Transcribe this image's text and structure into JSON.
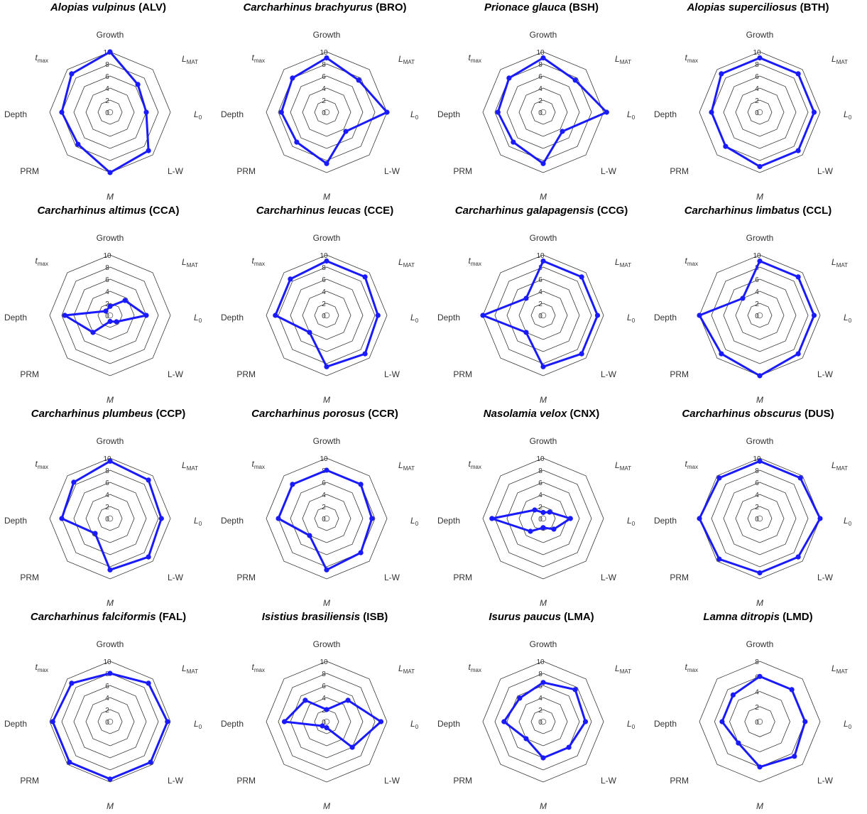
{
  "chart_data": {
    "type": "radar",
    "axes": [
      {
        "key": "Growth",
        "label": "Growth"
      },
      {
        "key": "L_MAT",
        "label": "L",
        "sub": "MAT",
        "italic": true
      },
      {
        "key": "L_0",
        "label": "L",
        "sub": "0",
        "italic": true
      },
      {
        "key": "L-W",
        "label": "L-W"
      },
      {
        "key": "M",
        "label": "M",
        "italic": true
      },
      {
        "key": "PRM",
        "label": "PRM"
      },
      {
        "key": "Depth",
        "label": "Depth"
      },
      {
        "key": "t_max",
        "label": "t",
        "sub": "max",
        "italic": true
      }
    ],
    "series_color": "#1a1aff",
    "grid_color": "#333333",
    "panels": [
      {
        "species": "Alopias vulpinus",
        "code": "(ALV)",
        "rmax": 10,
        "ticks": [
          0,
          2,
          4,
          6,
          8,
          10
        ],
        "values": [
          10,
          6.5,
          6,
          9,
          10,
          7.5,
          8,
          9
        ]
      },
      {
        "species": "Carcharhinus brachyurus",
        "code": "(BRO)",
        "rmax": 10,
        "ticks": [
          0,
          2,
          4,
          6,
          8,
          10
        ],
        "values": [
          9,
          7.5,
          10,
          4.5,
          8.5,
          7,
          7.5,
          8
        ]
      },
      {
        "species": "Prionace glauca",
        "code": "(BSH)",
        "rmax": 10,
        "ticks": [
          0,
          2,
          4,
          6,
          8,
          10
        ],
        "values": [
          9,
          7.5,
          10.5,
          4.5,
          8.5,
          7,
          7.5,
          8
        ]
      },
      {
        "species": "Alopias superciliosus",
        "code": "(BTH)",
        "rmax": 10,
        "ticks": [
          0,
          2,
          4,
          6,
          8,
          10
        ],
        "values": [
          9,
          9,
          9,
          9,
          9,
          8,
          8,
          9
        ]
      },
      {
        "species": "Carcharhinus altimus",
        "code": "(CCA)",
        "rmax": 10,
        "ticks": [
          0,
          2,
          4,
          6,
          8,
          10
        ],
        "values": [
          1.5,
          3.5,
          6,
          1.5,
          1,
          4,
          7.5,
          1
        ]
      },
      {
        "species": "Carcharhinus leucas",
        "code": "(CCE)",
        "rmax": 10,
        "ticks": [
          0,
          2,
          4,
          6,
          8,
          10
        ],
        "values": [
          9,
          9,
          8.5,
          9,
          8.5,
          4,
          8.5,
          8.5
        ]
      },
      {
        "species": "Carcharhinus galapagensis",
        "code": "(CCG)",
        "rmax": 10,
        "ticks": [
          0,
          2,
          4,
          6,
          8,
          10
        ],
        "values": [
          9,
          9,
          9,
          9,
          8.5,
          4,
          10,
          4
        ]
      },
      {
        "species": "Carcharhinus limbatus",
        "code": "(CCL)",
        "rmax": 10,
        "ticks": [
          0,
          2,
          4,
          6,
          8,
          10
        ],
        "values": [
          9,
          9,
          9,
          9,
          10,
          9,
          10,
          4
        ]
      },
      {
        "species": "Carcharhinus plumbeus",
        "code": "(CCP)",
        "rmax": 10,
        "ticks": [
          0,
          2,
          4,
          6,
          8,
          10
        ],
        "values": [
          9.5,
          9,
          8.5,
          9,
          8.5,
          3.5,
          8,
          8.5
        ]
      },
      {
        "species": "Carcharhinus porosus",
        "code": "(CCR)",
        "rmax": 10,
        "ticks": [
          0,
          2,
          4,
          6,
          8,
          10
        ],
        "values": [
          8,
          8,
          7.5,
          8,
          8.5,
          4,
          8,
          8
        ]
      },
      {
        "species": "Nasolamia velox",
        "code": "(CNX)",
        "rmax": 10,
        "ticks": [
          0,
          2,
          4,
          6,
          8,
          10
        ],
        "values": [
          1,
          1.5,
          4.5,
          2.5,
          1.5,
          3,
          8.5,
          2
        ]
      },
      {
        "species": "Carcharhinus obscurus",
        "code": "(DUS)",
        "rmax": 10,
        "ticks": [
          0,
          2,
          4,
          6,
          8,
          10
        ],
        "values": [
          9.5,
          9.5,
          10,
          9,
          9,
          9.5,
          10,
          9.5
        ]
      },
      {
        "species": "Carcharhinus falciformis",
        "code": "(FAL)",
        "rmax": 10,
        "ticks": [
          0,
          2,
          4,
          6,
          8,
          10
        ],
        "values": [
          8,
          9,
          9.5,
          9.5,
          9.5,
          9.5,
          9.5,
          9
        ]
      },
      {
        "species": "Isistius brasiliensis",
        "code": "(ISB)",
        "rmax": 10,
        "ticks": [
          0,
          2,
          4,
          6,
          8,
          10
        ],
        "values": [
          2,
          5,
          9,
          6,
          1,
          1,
          7,
          5
        ]
      },
      {
        "species": "Isurus paucus",
        "code": "(LMA)",
        "rmax": 10,
        "ticks": [
          0,
          2,
          4,
          6,
          8,
          10
        ],
        "values": [
          6.5,
          7.5,
          7,
          6,
          6,
          4,
          6.5,
          5.5
        ]
      },
      {
        "species": "Lamna ditropis",
        "code": "(LMD)",
        "rmax": 8,
        "ticks": [
          0,
          2,
          4,
          6,
          8
        ],
        "values": [
          6,
          6,
          6,
          6.5,
          6,
          4,
          5,
          5
        ]
      }
    ]
  }
}
